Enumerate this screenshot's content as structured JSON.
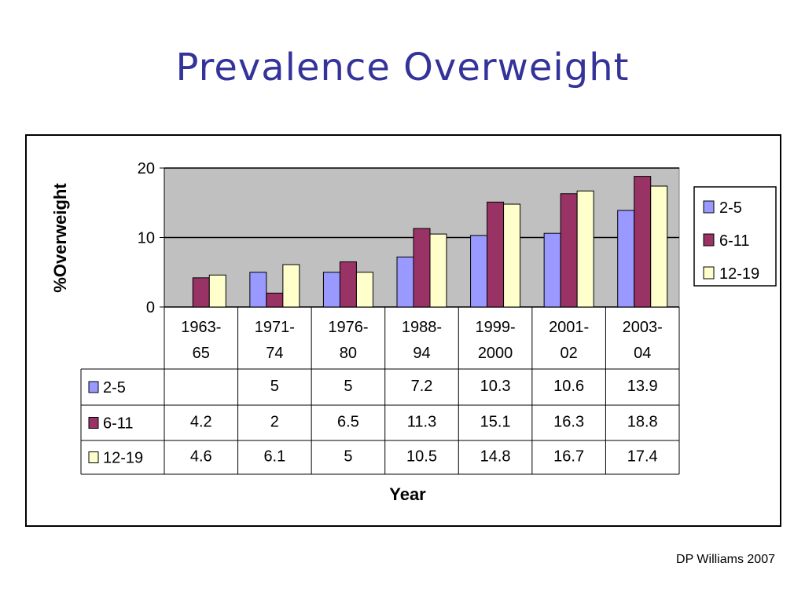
{
  "slide": {
    "title": "Prevalence Overweight",
    "credit": "DP Williams 2007"
  },
  "chart_data": {
    "type": "bar",
    "ylabel": "%Overweight",
    "xlabel": "Year",
    "ylim": [
      0,
      20
    ],
    "yticks": [
      "0",
      "10",
      "20"
    ],
    "grid": true,
    "legend_position": "right",
    "categories": [
      [
        "1963-",
        "65"
      ],
      [
        "1971-",
        "74"
      ],
      [
        "1976-",
        "80"
      ],
      [
        "1988-",
        "94"
      ],
      [
        "1999-",
        "2000"
      ],
      [
        "2001-",
        "02"
      ],
      [
        "2003-",
        "04"
      ]
    ],
    "series": [
      {
        "name": "2-5",
        "color": "#9999ff",
        "values": [
          null,
          5,
          5,
          7.2,
          10.3,
          10.6,
          13.9
        ],
        "labels": [
          "",
          "5",
          "5",
          "7.2",
          "10.3",
          "10.6",
          "13.9"
        ]
      },
      {
        "name": "6-11",
        "color": "#993366",
        "values": [
          4.2,
          2,
          6.5,
          11.3,
          15.1,
          16.3,
          18.8
        ],
        "labels": [
          "4.2",
          "2",
          "6.5",
          "11.3",
          "15.1",
          "16.3",
          "18.8"
        ]
      },
      {
        "name": "12-19",
        "color": "#ffffcc",
        "values": [
          4.6,
          6.1,
          5,
          10.5,
          14.8,
          16.7,
          17.4
        ],
        "labels": [
          "4.6",
          "6.1",
          "5",
          "10.5",
          "14.8",
          "16.7",
          "17.4"
        ]
      }
    ],
    "plot_background": "#c0c0c0"
  }
}
